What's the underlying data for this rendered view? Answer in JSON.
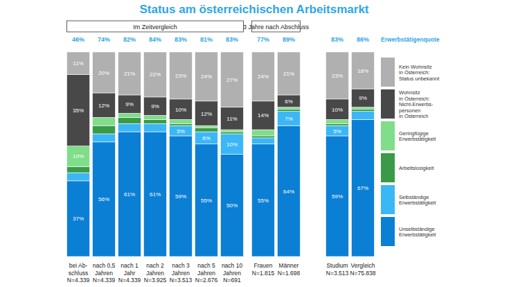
{
  "chart_data": {
    "type": "bar",
    "stacked": true,
    "data_labels": true,
    "tick_labels": false,
    "title": "Status am österreichischen Arbeitsmarkt",
    "categories": [
      "bei Ab-\nschluss\nN=4.339",
      "nach 0,5\nJahren\nN=4.339",
      "nach 1\nJahr\nN=4.339",
      "nach 2\nJahren\nN=3.925",
      "nach 3\nJahren\nN=3.513",
      "nach 5\nJahren\nN=2.676",
      "nach 10\nJahren\nN=691",
      "Frauen\nN=1.815",
      "Männer\nN=1.698",
      "Studium\nN=3.513",
      "Vergleich\nN=75.838"
    ],
    "groups": [
      {
        "label": "Im Zeitvergleich",
        "start": 0,
        "end": 6
      },
      {
        "label": "3 Jahre nach Abschluss",
        "start": 7,
        "end": 8
      }
    ],
    "ylim": [
      0,
      100
    ],
    "yticks": [],
    "rate": {
      "name": "Erwerbstätigenquote",
      "color": "#2ea6e6",
      "values": [
        46,
        74,
        82,
        84,
        83,
        81,
        83,
        77,
        89,
        83,
        86
      ],
      "value_labels": [
        "46%",
        "74%",
        "82%",
        "84%",
        "83%",
        "81%",
        "83%",
        "77%",
        "89%",
        "83%",
        "86%"
      ]
    },
    "series": [
      {
        "name": "Unselbständige\nErwerbstätigkeit",
        "color": "#0b7fd4",
        "values": [
          37,
          56,
          61,
          61,
          59,
          55,
          50,
          55,
          64,
          59,
          67
        ],
        "value_labels": [
          "37%",
          "56%",
          "61%",
          "61%",
          "59%",
          "55%",
          "50%",
          "55%",
          "64%",
          "59%",
          "67%"
        ]
      },
      {
        "name": "Selbständige\nErwerbstätigkeit",
        "color": "#3cb7f5",
        "values": [
          4,
          4,
          4,
          4,
          5,
          6,
          10,
          3,
          7,
          5,
          4
        ],
        "value_labels": [
          null,
          null,
          null,
          null,
          "5%",
          "6%",
          "10%",
          null,
          "7%",
          "5%",
          null
        ]
      },
      {
        "name": "Arbeitslosigkeit",
        "color": "#3a9a48",
        "values": [
          3,
          4,
          3,
          2,
          1,
          2,
          1,
          1,
          1,
          1,
          1
        ],
        "value_labels": [
          null,
          null,
          null,
          null,
          null,
          null,
          null,
          null,
          null,
          null,
          null
        ]
      },
      {
        "name": "Geringfügige\nErwerbstätigkeit",
        "color": "#80dd8a",
        "values": [
          10,
          4,
          2,
          2,
          2,
          1,
          1,
          3,
          1,
          2,
          1
        ],
        "value_labels": [
          "10%",
          null,
          null,
          null,
          null,
          null,
          null,
          null,
          null,
          null,
          null
        ]
      },
      {
        "name": "Wohnsitz\nin Österreich:\nNicht-Erwerbs-\npersonen\nin Österreich",
        "color": "#484848",
        "values": [
          35,
          12,
          9,
          9,
          10,
          12,
          11,
          14,
          6,
          10,
          9
        ],
        "value_labels": [
          "35%",
          "12%",
          "9%",
          "9%",
          "10%",
          "12%",
          "11%",
          "14%",
          "6%",
          "10%",
          "9%"
        ]
      },
      {
        "name": "Kein Wohnsitz\nin Österreich:\nStatus unbekannt",
        "color": "#b0b0b0",
        "values": [
          11,
          20,
          21,
          22,
          23,
          24,
          27,
          24,
          21,
          23,
          18
        ],
        "value_labels": [
          "11%",
          "20%",
          "21%",
          "22%",
          "23%",
          "24%",
          "27%",
          "24%",
          "21%",
          "23%",
          "18%"
        ]
      }
    ]
  }
}
